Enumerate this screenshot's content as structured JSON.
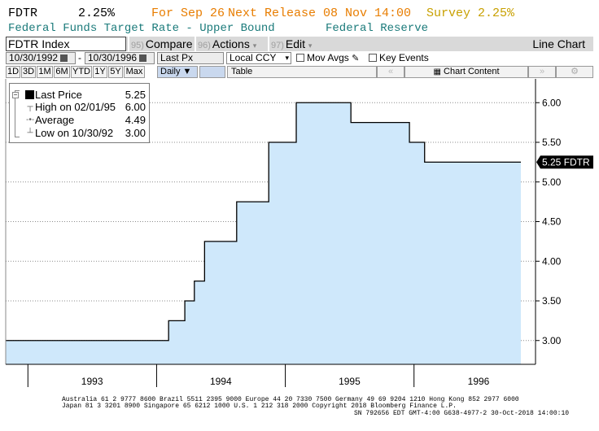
{
  "header": {
    "ticker": "FDTR",
    "last": "2.25%",
    "date": "For Sep 26",
    "next_release": "Next Release 08 Nov 14:00",
    "survey": "Survey 2.25%",
    "description": "Federal Funds Target Rate - Upper Bound",
    "source": "Federal Reserve"
  },
  "toolbar": {
    "security": "FDTR Index",
    "compare_num": "95)",
    "compare": "Compare",
    "actions_num": "96)",
    "actions": "Actions",
    "edit_num": "97)",
    "edit": "Edit",
    "chart_type": "Line Chart"
  },
  "controls": {
    "start_date": "10/30/1992",
    "end_date": "10/30/1996",
    "date_dash": "-",
    "field": "Last Px",
    "currency": "Local CCY",
    "mov_avgs": "Mov Avgs",
    "key_events": "Key Events"
  },
  "ranges": [
    "1D",
    "3D",
    "1M",
    "6M",
    "YTD",
    "1Y",
    "5Y",
    "Max"
  ],
  "periodicity": "Daily",
  "table_label": "Table",
  "chart_content_label": "Chart Content",
  "legend": {
    "items": [
      {
        "label": "Last Price",
        "value": "5.25"
      },
      {
        "label": "High on 02/01/95",
        "value": "6.00"
      },
      {
        "label": "Average",
        "value": "4.49"
      },
      {
        "label": "Low on 10/30/92",
        "value": "3.00"
      }
    ]
  },
  "footer": {
    "line1": "Australia 61 2 9777 8600 Brazil 5511 2395 9000 Europe 44 20 7330 7500 Germany 49 69 9204 1210 Hong Kong 852 2977 6000",
    "line2": "Japan 81 3 3201 8900         Singapore 65 6212 1000          U.S. 1 212 318 2000             Copyright 2018 Bloomberg Finance L.P.",
    "line3": "SN 792656 EDT  GMT-4:00 G638-4977-2 30-Oct-2018 14:00:10"
  },
  "colors": {
    "area_fill": "#cfe8fb",
    "line": "#000000",
    "ticker_orange": "#e87d00",
    "survey_gold": "#c8a000",
    "teal": "#1a7a7a"
  },
  "chart_data": {
    "type": "area",
    "step": true,
    "x_start": "1992-10-30",
    "x_end": "1996-10-30",
    "series": [
      {
        "name": "FDTR",
        "points": [
          {
            "date": "1992-10-30",
            "value": 3.0
          },
          {
            "date": "1994-02-04",
            "value": 3.25
          },
          {
            "date": "1994-03-22",
            "value": 3.5
          },
          {
            "date": "1994-04-18",
            "value": 3.75
          },
          {
            "date": "1994-05-17",
            "value": 4.25
          },
          {
            "date": "1994-08-16",
            "value": 4.75
          },
          {
            "date": "1994-11-15",
            "value": 5.5
          },
          {
            "date": "1995-02-01",
            "value": 6.0
          },
          {
            "date": "1995-07-06",
            "value": 5.75
          },
          {
            "date": "1995-12-19",
            "value": 5.5
          },
          {
            "date": "1996-01-31",
            "value": 5.25
          },
          {
            "date": "1996-10-30",
            "value": 5.25
          }
        ]
      }
    ],
    "y_ticks": [
      "3.00",
      "3.50",
      "4.00",
      "4.50",
      "5.00",
      "5.50",
      "6.00"
    ],
    "ylim": [
      2.7,
      6.3
    ],
    "x_tick_labels": [
      "1993",
      "1994",
      "1995",
      "1996"
    ],
    "last_value_label": "5.25 FDTR",
    "grid": true,
    "legend_position": "top-left"
  }
}
